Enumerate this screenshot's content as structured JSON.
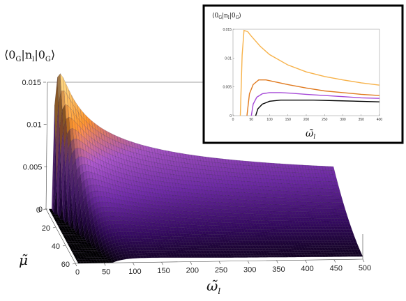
{
  "chart_data": [
    {
      "type": "surface",
      "zlabel": "⟨0_G|n_l|0_G⟩",
      "xlabel": "ω̃_l",
      "ylabel": "μ̃",
      "xlim": [
        0,
        500
      ],
      "ylim": [
        0,
        60
      ],
      "zlim": [
        0,
        0.015
      ],
      "x_ticks": [
        "0",
        "50",
        "100",
        "150",
        "200",
        "250",
        "300",
        "350",
        "400",
        "450",
        "500"
      ],
      "y_ticks": [
        "0",
        "20",
        "40",
        "60"
      ],
      "z_ticks": [
        "0",
        "0.005",
        "0.01",
        "0.015"
      ],
      "grid": false,
      "colormap": [
        "#000000",
        "#3a0a6b",
        "#7a2fb8",
        "#b05ad0",
        "#f08a2a",
        "#ffc070"
      ],
      "description_values": {
        "mu_0_curve": {
          "x": [
            10,
            20,
            30,
            50,
            75,
            100,
            150,
            200,
            250,
            300,
            350,
            400,
            450,
            500
          ],
          "z": [
            0.004,
            0.0115,
            0.0135,
            0.012,
            0.0105,
            0.0094,
            0.008,
            0.0072,
            0.0066,
            0.0062,
            0.0059,
            0.0057,
            0.0055,
            0.0054
          ]
        },
        "mu_60_curve": {
          "x": [
            60,
            75,
            100,
            150,
            200,
            250,
            300,
            350,
            400,
            450,
            500
          ],
          "z": [
            0,
            0.0012,
            0.002,
            0.0024,
            0.0025,
            0.0025,
            0.0025,
            0.0025,
            0.0024,
            0.0024,
            0.0023
          ]
        }
      }
    },
    {
      "type": "line",
      "title": "⟨0_G|n_l|0_G⟩",
      "xlabel": "ω̃_l",
      "xlim": [
        0,
        400
      ],
      "ylim": [
        0,
        0.015
      ],
      "x_ticks": [
        "0",
        "50",
        "100",
        "150",
        "200",
        "250",
        "300",
        "350",
        "400"
      ],
      "y_ticks": [
        "0",
        "0.005",
        "0.01",
        "0.015"
      ],
      "series": [
        {
          "color": "#f7b24a",
          "x": [
            20,
            25,
            30,
            40,
            50,
            75,
            100,
            150,
            200,
            250,
            300,
            350,
            400
          ],
          "y": [
            0.0,
            0.0105,
            0.0148,
            0.0146,
            0.0138,
            0.012,
            0.0106,
            0.0088,
            0.0076,
            0.0068,
            0.0062,
            0.0057,
            0.0053
          ]
        },
        {
          "color": "#e07a1f",
          "x": [
            38,
            45,
            55,
            70,
            90,
            120,
            150,
            200,
            250,
            300,
            350,
            400
          ],
          "y": [
            0.0,
            0.0038,
            0.0054,
            0.0062,
            0.0062,
            0.0058,
            0.0054,
            0.0048,
            0.0043,
            0.004,
            0.0037,
            0.0035
          ]
        },
        {
          "color": "#a64ad8",
          "x": [
            50,
            55,
            65,
            80,
            100,
            130,
            160,
            200,
            250,
            300,
            350,
            400
          ],
          "y": [
            0.0,
            0.002,
            0.0032,
            0.0038,
            0.004,
            0.004,
            0.0039,
            0.0037,
            0.0035,
            0.0033,
            0.0031,
            0.003
          ]
        },
        {
          "color": "#000000",
          "x": [
            62,
            68,
            80,
            100,
            130,
            170,
            220,
            280,
            340,
            400
          ],
          "y": [
            0.0,
            0.0012,
            0.002,
            0.0025,
            0.0027,
            0.0027,
            0.0027,
            0.0026,
            0.0025,
            0.0024
          ]
        }
      ]
    }
  ]
}
